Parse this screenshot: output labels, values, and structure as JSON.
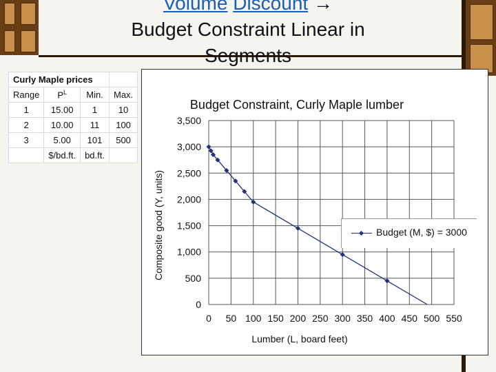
{
  "slide": {
    "title_link_1": "Volume",
    "title_link_2": "Discount",
    "title_arrow": "→",
    "title_line_2": "Budget Constraint Linear in",
    "title_line_3": "Segments"
  },
  "price_table": {
    "title": "Curly Maple prices",
    "headers": [
      "Range",
      "P",
      "Min.",
      "Max."
    ],
    "p_superscript": "L",
    "rows": [
      [
        "1",
        "15.00",
        "1",
        "10"
      ],
      [
        "2",
        "10.00",
        "11",
        "100"
      ],
      [
        "3",
        "5.00",
        "101",
        "500"
      ]
    ],
    "units": [
      "",
      "$/bd.ft.",
      "bd.ft.",
      ""
    ]
  },
  "chart_data": {
    "type": "line",
    "title": "Budget Constraint, Curly Maple lumber",
    "xlabel": "Lumber (L, board feet)",
    "ylabel": "Composite good (Y, units)",
    "xlim": [
      0,
      550
    ],
    "ylim": [
      0,
      3500
    ],
    "x_ticks": [
      0,
      50,
      100,
      150,
      200,
      250,
      300,
      350,
      400,
      450,
      500,
      550
    ],
    "y_ticks": [
      0,
      500,
      1000,
      1500,
      2000,
      2500,
      3000,
      3500
    ],
    "y_tick_labels": [
      "0",
      "500",
      "1,000",
      "1,500",
      "2,000",
      "2,500",
      "3,000",
      "3,500"
    ],
    "grid": true,
    "legend": "right",
    "series": [
      {
        "name": "Budget (M, $) = 3000",
        "color": "#22317a",
        "x": [
          0,
          5,
          10,
          20,
          40,
          60,
          80,
          100,
          200,
          300,
          400,
          490
        ],
        "y": [
          3000,
          2925,
          2850,
          2750,
          2550,
          2350,
          2150,
          1950,
          1450,
          950,
          450,
          0
        ]
      }
    ]
  }
}
